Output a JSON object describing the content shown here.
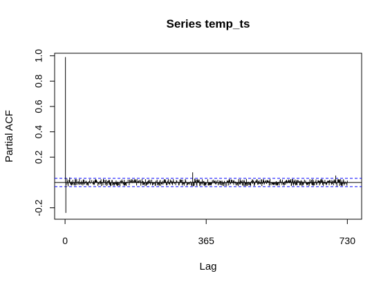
{
  "chart_data": {
    "type": "bar",
    "title": "Series  temp_ts",
    "xlabel": "Lag",
    "ylabel": "Partial ACF",
    "xlim": [
      -27,
      767
    ],
    "ylim": [
      -0.29,
      1.02
    ],
    "x_ticks": [
      0,
      365,
      730
    ],
    "x_tick_labels": [
      "0",
      "365",
      "730"
    ],
    "y_ticks": [
      -0.2,
      0.2,
      0.4,
      0.6,
      0.8,
      1.0
    ],
    "y_tick_labels": [
      "-0.2",
      "0.2",
      "0.4",
      "0.6",
      "0.8",
      "1.0"
    ],
    "confidence_bound": 0.0325,
    "grid": false,
    "colors": {
      "bars": "#000000",
      "confidence": "#0000ff",
      "zero_line": "#000000"
    },
    "spikes": [
      {
        "lag": 1,
        "pacf": 0.99
      },
      {
        "lag": 2,
        "pacf": -0.24
      },
      {
        "lag": 3,
        "pacf": -0.02
      },
      {
        "lag": 5,
        "pacf": 0.03
      },
      {
        "lag": 6,
        "pacf": 0.015
      },
      {
        "lag": 8,
        "pacf": -0.03
      },
      {
        "lag": 10,
        "pacf": 0.02
      },
      {
        "lag": 12,
        "pacf": 0.04
      },
      {
        "lag": 15,
        "pacf": -0.02
      },
      {
        "lag": 20,
        "pacf": 0.02
      },
      {
        "lag": 330,
        "pacf": 0.08
      },
      {
        "lag": 333,
        "pacf": -0.03
      },
      {
        "lag": 335,
        "pacf": 0.03
      },
      {
        "lag": 700,
        "pacf": 0.055
      },
      {
        "lag": 703,
        "pacf": -0.03
      },
      {
        "lag": 705,
        "pacf": 0.025
      }
    ],
    "noise": {
      "from_lag": 4,
      "to_lag": 730,
      "amplitude": 0.028,
      "seed": 7
    }
  }
}
